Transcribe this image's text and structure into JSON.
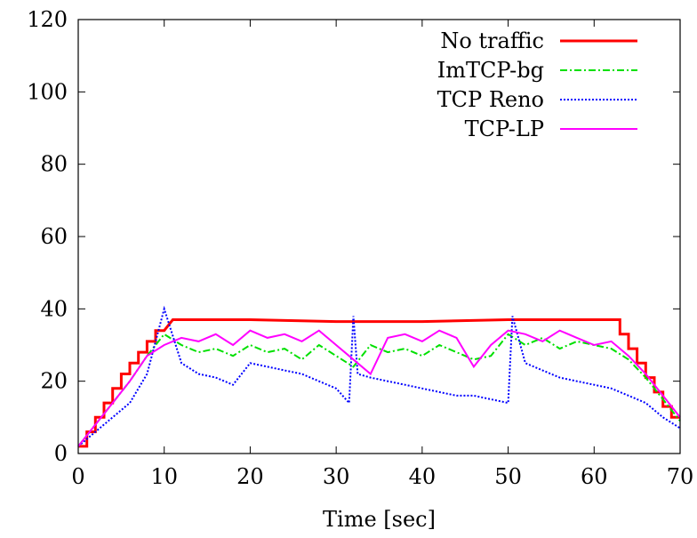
{
  "chart_data": {
    "type": "line",
    "title": "",
    "xlabel": "Time [sec]",
    "ylabel": "",
    "xlim": [
      0,
      70
    ],
    "ylim": [
      0,
      120
    ],
    "xticks": [
      "0",
      "10",
      "20",
      "30",
      "40",
      "50",
      "60",
      "70"
    ],
    "yticks": [
      "0",
      "20",
      "40",
      "60",
      "80",
      "100",
      "120"
    ],
    "grid": false,
    "legend_position": "top-right",
    "series": [
      {
        "name": "No traffic",
        "color": "#ff0000",
        "style": "solid",
        "x": [
          0,
          1,
          1,
          2,
          2,
          3,
          3,
          4,
          4,
          5,
          5,
          6,
          6,
          7,
          7,
          8,
          8,
          9,
          9,
          10,
          11,
          20,
          30,
          40,
          50,
          63,
          63,
          64,
          64,
          65,
          65,
          66,
          66,
          67,
          67,
          68,
          68,
          69,
          69,
          70
        ],
        "y": [
          2,
          2,
          6,
          6,
          10,
          10,
          14,
          14,
          18,
          18,
          22,
          22,
          25,
          25,
          28,
          28,
          31,
          31,
          34,
          34,
          37,
          37,
          36.5,
          36.5,
          37,
          37,
          33,
          33,
          29,
          29,
          25,
          25,
          21,
          21,
          17,
          17,
          13,
          13,
          10,
          10
        ]
      },
      {
        "name": "ImTCP-bg",
        "color": "#00e000",
        "style": "dashdot",
        "x": [
          0,
          2,
          4,
          6,
          8,
          10,
          12,
          14,
          16,
          18,
          20,
          22,
          24,
          26,
          28,
          30,
          32,
          34,
          36,
          38,
          40,
          42,
          44,
          46,
          48,
          50,
          52,
          54,
          56,
          58,
          60,
          62,
          64,
          66,
          68,
          70
        ],
        "y": [
          2,
          8,
          14,
          20,
          27,
          33,
          30,
          28,
          29,
          27,
          30,
          28,
          29,
          26,
          30,
          27,
          24,
          30,
          28,
          29,
          27,
          30,
          28,
          26,
          27,
          33,
          30,
          32,
          29,
          31,
          30,
          29,
          26,
          21,
          15,
          9
        ]
      },
      {
        "name": "TCP Reno",
        "color": "#0000ff",
        "style": "dotted",
        "x": [
          0,
          2,
          4,
          6,
          8,
          10,
          12,
          14,
          16,
          18,
          20,
          22,
          24,
          26,
          28,
          30,
          31.5,
          32,
          32.5,
          34,
          36,
          38,
          40,
          42,
          44,
          46,
          48,
          50,
          50.5,
          52,
          54,
          56,
          58,
          60,
          62,
          64,
          66,
          68,
          70
        ],
        "y": [
          2,
          6,
          10,
          14,
          22,
          40,
          25,
          22,
          21,
          19,
          25,
          24,
          23,
          22,
          20,
          18,
          14,
          38,
          22,
          21,
          20,
          19,
          18,
          17,
          16,
          16,
          15,
          14,
          38,
          25,
          23,
          21,
          20,
          19,
          18,
          16,
          14,
          10,
          7
        ]
      },
      {
        "name": "TCP-LP",
        "color": "#ff00ff",
        "style": "solid",
        "x": [
          0,
          2,
          4,
          6,
          8,
          10,
          12,
          14,
          16,
          18,
          20,
          22,
          24,
          26,
          28,
          30,
          32,
          34,
          36,
          38,
          40,
          42,
          44,
          46,
          48,
          50,
          52,
          54,
          56,
          58,
          60,
          62,
          64,
          66,
          68,
          70
        ],
        "y": [
          2,
          8,
          14,
          20,
          27,
          30,
          32,
          31,
          33,
          30,
          34,
          32,
          33,
          31,
          34,
          30,
          26,
          22,
          32,
          33,
          31,
          34,
          32,
          24,
          30,
          34,
          33,
          31,
          34,
          32,
          30,
          31,
          27,
          22,
          16,
          10
        ]
      }
    ]
  }
}
